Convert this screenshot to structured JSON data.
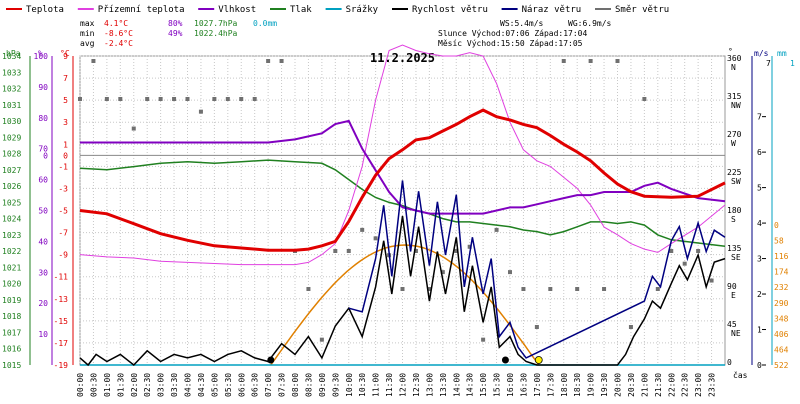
{
  "chart_data": {
    "type": "line",
    "title": "11.2.2025",
    "legend": [
      {
        "key": "temp",
        "label": "Teplota",
        "color": "#e00000"
      },
      {
        "key": "feels",
        "label": "Přízemní teplota",
        "color": "#e040e0"
      },
      {
        "key": "hum",
        "label": "Vlhkost",
        "color": "#8000c0"
      },
      {
        "key": "press",
        "label": "Tlak",
        "color": "#208020"
      },
      {
        "key": "rain",
        "label": "Srážky",
        "color": "#00a0c0"
      },
      {
        "key": "wind",
        "label": "Rychlost větru",
        "color": "#000000"
      },
      {
        "key": "gust",
        "label": "Náraz větru",
        "color": "#000080"
      },
      {
        "key": "dir",
        "label": "Směr větru",
        "color": "#707070"
      }
    ],
    "stats": {
      "max": {
        "label": "max",
        "temp": "4.1°C",
        "hum": "80%",
        "press": "1027.7hPa",
        "rain": "0.0mm"
      },
      "min": {
        "label": "min",
        "temp": "-8.6°C",
        "hum": "49%",
        "press": "1022.4hPa"
      },
      "avg": {
        "label": "avg",
        "temp": "-2.4°C"
      },
      "ws": "WS:5.4m/s",
      "wg": "WG:6.9m/s",
      "sun": "Slunce Východ:07:06   Západ:17:04",
      "moon": "Měsíc  Východ:15:50  Západ:17:05"
    },
    "axes": {
      "hpa_label": "hPa",
      "pct_label": "%",
      "c_label": "°C",
      "deg_label": "°",
      "ms_label": "m/s",
      "mm_label": "mm",
      "time_label": "čas",
      "hpa_ticks": [
        "1034",
        "1033",
        "1032",
        "1031",
        "1030",
        "1029",
        "1028",
        "1027",
        "1026",
        "1025",
        "1024",
        "1023",
        "1022",
        "1021",
        "1020",
        "1019",
        "1018",
        "1017",
        "1016",
        "1015"
      ],
      "pct_ticks": [
        "100",
        "90",
        "80",
        "70",
        "60",
        "50",
        "40",
        "30",
        "20",
        "10"
      ],
      "c_ticks": [
        "9",
        "7",
        "5",
        "3",
        "1",
        "-1",
        "-3",
        "-5",
        "-7",
        "-9",
        "-11",
        "-13",
        "-15",
        "-17",
        "-19"
      ],
      "c_zero": "0",
      "pct_zero": "0",
      "deg_ticks": [
        {
          "v": "360",
          "d": "N"
        },
        {
          "v": "315",
          "d": "NW"
        },
        {
          "v": "270",
          "d": "W"
        },
        {
          "v": "225",
          "d": "SW"
        },
        {
          "v": "180",
          "d": "S"
        },
        {
          "v": "135",
          "d": "SE"
        },
        {
          "v": "90",
          "d": "E"
        },
        {
          "v": "45",
          "d": "NE"
        },
        {
          "v": "0",
          "d": ""
        }
      ],
      "ms_ticks": [
        "7",
        "6",
        "5",
        "4",
        "3",
        "2",
        "1",
        "0"
      ],
      "ms_top": "7",
      "mm_top": "1",
      "mm_ticks": [
        "522",
        "464",
        "406",
        "348",
        "290",
        "232",
        "174",
        "116",
        "58",
        "0"
      ],
      "x_ticks": [
        "00:00",
        "00:30",
        "01:00",
        "01:30",
        "02:00",
        "02:30",
        "03:00",
        "03:30",
        "04:00",
        "04:30",
        "05:00",
        "05:30",
        "06:00",
        "06:30",
        "07:00",
        "07:30",
        "08:00",
        "08:30",
        "09:00",
        "09:30",
        "10:00",
        "10:30",
        "11:00",
        "11:30",
        "12:00",
        "12:30",
        "13:00",
        "13:30",
        "14:00",
        "14:30",
        "15:00",
        "15:30",
        "16:00",
        "16:30",
        "17:00",
        "17:30",
        "18:00",
        "18:30",
        "19:00",
        "19:30",
        "20:00",
        "20:30",
        "21:00",
        "21:30",
        "22:00",
        "22:30",
        "23:00",
        "23:30"
      ]
    },
    "series": [
      {
        "name": "Teplota",
        "key": "temp",
        "unit": "°C",
        "x": [
          0,
          1,
          2,
          3,
          4,
          5,
          6,
          7,
          8,
          8.5,
          9,
          9.5,
          10,
          10.5,
          11,
          11.5,
          12,
          12.5,
          13,
          13.5,
          14,
          14.5,
          15,
          15.5,
          16,
          16.5,
          17,
          17.5,
          18,
          18.5,
          19,
          19.5,
          20,
          20.5,
          21,
          22,
          23,
          24
        ],
        "values": [
          -5,
          -5.3,
          -6.2,
          -7.1,
          -7.7,
          -8.2,
          -8.4,
          -8.6,
          -8.6,
          -8.5,
          -8.2,
          -7.8,
          -6,
          -3.8,
          -1.8,
          -0.3,
          0.5,
          1.4,
          1.6,
          2.2,
          2.8,
          3.5,
          4.1,
          3.5,
          3.2,
          2.8,
          2.5,
          1.8,
          1,
          0.3,
          -0.5,
          -1.6,
          -2.6,
          -3.3,
          -3.7,
          -3.8,
          -3.7,
          -2.5
        ]
      },
      {
        "name": "Přízemní teplota",
        "key": "feels",
        "unit": "°C",
        "x": [
          0,
          1,
          2,
          3,
          4,
          5,
          6,
          7,
          8,
          8.5,
          9,
          9.5,
          10,
          10.5,
          11,
          11.5,
          12,
          12.5,
          13,
          13.5,
          14,
          14.5,
          15,
          15.5,
          16,
          16.5,
          17,
          17.5,
          18,
          18.5,
          19,
          19.5,
          20,
          20.5,
          21,
          21.5,
          22,
          23,
          24
        ],
        "values": [
          -9,
          -9.2,
          -9.3,
          -9.6,
          -9.7,
          -9.8,
          -9.9,
          -9.9,
          -9.9,
          -9.7,
          -9.0,
          -8.0,
          -5.0,
          -1.0,
          5.0,
          9.5,
          10.0,
          9.5,
          9.2,
          9.0,
          9.0,
          9.3,
          9.0,
          6.5,
          3.0,
          0.5,
          -0.5,
          -1.0,
          -2.0,
          -3.0,
          -4.5,
          -6.5,
          -7.2,
          -8.0,
          -8.5,
          -8.8,
          -8.0,
          -6.5,
          -4.5
        ]
      },
      {
        "name": "Vlhkost",
        "key": "hum",
        "unit": "%",
        "x": [
          0,
          1,
          2,
          3,
          4,
          5,
          6,
          7,
          8,
          9,
          9.5,
          10,
          10.5,
          11,
          11.5,
          12,
          12.5,
          13,
          13.5,
          14,
          14.5,
          15,
          15.5,
          16,
          16.5,
          17,
          17.5,
          18,
          18.5,
          19,
          19.5,
          20,
          20.5,
          21,
          21.5,
          22,
          23,
          24
        ],
        "values": [
          72,
          72,
          72,
          72,
          72,
          72,
          72,
          72,
          73,
          75,
          78,
          79,
          70,
          63,
          56,
          51,
          50,
          49,
          49,
          49,
          49,
          49,
          50,
          51,
          51,
          52,
          53,
          54,
          55,
          55,
          56,
          56,
          56,
          58,
          59,
          57,
          54,
          53
        ]
      },
      {
        "name": "Tlak",
        "key": "press",
        "unit": "hPa",
        "x": [
          0,
          1,
          2,
          3,
          4,
          5,
          6,
          7,
          8,
          9,
          9.5,
          10,
          10.5,
          11,
          11.5,
          12,
          12.5,
          13,
          13.5,
          14,
          14.5,
          15,
          15.5,
          16,
          16.5,
          17,
          17.5,
          18,
          18.5,
          19,
          19.5,
          20,
          20.5,
          21,
          21.5,
          22,
          23,
          24
        ],
        "values": [
          1027.1,
          1027.0,
          1027.2,
          1027.4,
          1027.5,
          1027.4,
          1027.5,
          1027.6,
          1027.5,
          1027.4,
          1027.0,
          1026.4,
          1025.8,
          1025.3,
          1025.0,
          1024.8,
          1024.5,
          1024.3,
          1024.0,
          1023.8,
          1023.8,
          1023.7,
          1023.6,
          1023.5,
          1023.3,
          1023.2,
          1023.0,
          1023.2,
          1023.5,
          1023.8,
          1023.8,
          1023.7,
          1023.8,
          1023.6,
          1023.0,
          1022.7,
          1022.5,
          1022.3
        ]
      },
      {
        "name": "Srážky",
        "key": "rain",
        "unit": "mm",
        "x": [
          0,
          24
        ],
        "values": [
          0,
          0
        ]
      },
      {
        "name": "Rychlost větru",
        "key": "wind",
        "unit": "m/s",
        "x": [
          0,
          0.3,
          0.6,
          1,
          1.5,
          2,
          2.5,
          3,
          3.5,
          4,
          4.5,
          5,
          5.5,
          6,
          6.5,
          7,
          7.5,
          8,
          8.5,
          9,
          9.5,
          10,
          10.5,
          11,
          11.3,
          11.6,
          12,
          12.3,
          12.6,
          13,
          13.3,
          13.6,
          14,
          14.3,
          14.6,
          15,
          15.3,
          15.6,
          16,
          16.3,
          16.6,
          17,
          17.5,
          18,
          18.5,
          19,
          19.5,
          20,
          20.3,
          20.6,
          21,
          21.3,
          21.6,
          22,
          22.3,
          22.6,
          23,
          23.3,
          23.6,
          24
        ],
        "values": [
          0.2,
          0,
          0.3,
          0.1,
          0.3,
          0,
          0.4,
          0.1,
          0.3,
          0.2,
          0.3,
          0.1,
          0.3,
          0.4,
          0.2,
          0.1,
          0.6,
          0.3,
          0.8,
          0.2,
          1.1,
          1.6,
          0.8,
          2.2,
          3.5,
          2.0,
          4.2,
          2.5,
          3.9,
          1.8,
          3.2,
          2.0,
          3.6,
          1.5,
          2.8,
          1.2,
          2.2,
          0.5,
          0.8,
          0.3,
          0.1,
          0,
          0,
          0,
          0,
          0,
          0,
          0,
          0.3,
          0.8,
          1.3,
          1.8,
          1.6,
          2.3,
          2.8,
          2.4,
          3.1,
          2.2,
          2.9,
          3.0
        ]
      },
      {
        "name": "Náraz větru",
        "key": "gust",
        "unit": "m/s",
        "x": [
          10,
          10.5,
          11,
          11.3,
          11.6,
          12,
          12.3,
          12.6,
          13,
          13.3,
          13.6,
          14,
          14.3,
          14.6,
          15,
          15.3,
          15.6,
          16,
          16.3,
          16.6,
          21,
          21.3,
          21.6,
          22,
          22.3,
          22.6,
          23,
          23.3,
          23.6,
          24
        ],
        "values": [
          1.6,
          1.5,
          3.0,
          4.5,
          2.5,
          5.2,
          3.2,
          4.9,
          2.8,
          4.6,
          3.1,
          4.8,
          2.2,
          3.6,
          2.0,
          3.0,
          0.8,
          1.2,
          0.5,
          0.2,
          1.8,
          2.5,
          2.2,
          3.5,
          3.9,
          3.0,
          4.0,
          3.2,
          3.8,
          3.6
        ]
      },
      {
        "name": "Směr větru",
        "key": "dir",
        "unit": "°",
        "x": [
          0,
          0.5,
          1,
          1.5,
          2,
          2.5,
          3,
          3.5,
          4,
          4.5,
          5,
          5.5,
          6,
          6.5,
          7,
          7.5,
          8,
          8.5,
          9,
          9.5,
          10,
          10.5,
          11,
          11.5,
          12,
          12.5,
          13,
          13.5,
          14,
          14.5,
          15,
          15.5,
          16,
          16.5,
          17,
          17.5,
          18,
          18.5,
          19,
          19.5,
          20,
          20.5,
          21,
          21.5,
          22,
          22.5,
          23,
          23.5
        ],
        "values": [
          315,
          360,
          315,
          315,
          280,
          315,
          315,
          315,
          315,
          300,
          315,
          315,
          315,
          315,
          360,
          360,
          135,
          90,
          30,
          135,
          135,
          160,
          150,
          130,
          90,
          135,
          90,
          110,
          135,
          140,
          30,
          160,
          110,
          90,
          45,
          90,
          360,
          90,
          360,
          90,
          360,
          45,
          315,
          90,
          135,
          120,
          135,
          100
        ]
      }
    ]
  }
}
